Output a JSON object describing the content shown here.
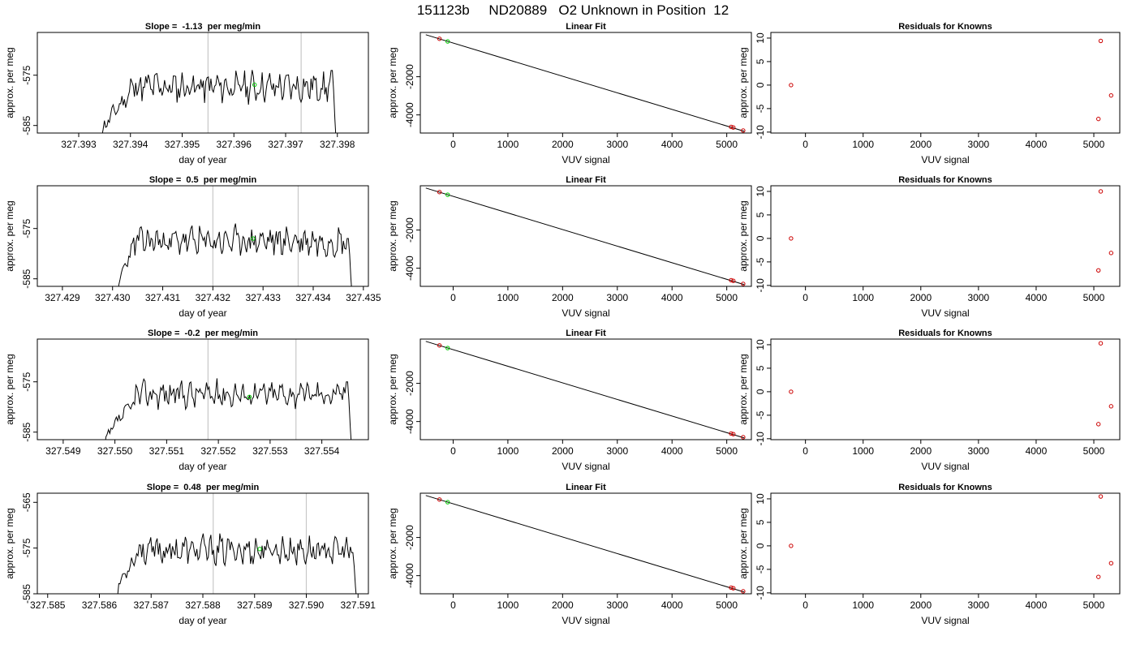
{
  "page_title": "151123b     ND20889   O2 Unknown in Position  12",
  "colors": {
    "trace": "#000000",
    "known_point": "#cc0000",
    "unknown_point": "#00cc00",
    "vline": "#c8c8c8"
  },
  "panel_titles": {
    "fit": "Linear Fit",
    "residuals": "Residuals for Knowns"
  },
  "axis_labels": {
    "time_x": "day of year",
    "y": "approx. per meg",
    "vuv_x": "VUV signal"
  },
  "chart_data": [
    {
      "type": "line",
      "row": 1,
      "title": "Slope =  -1.13  per meg/min",
      "xlabel": "day of year",
      "ylabel": "approx. per meg",
      "xlim": [
        327.3922,
        327.3986
      ],
      "ylim": [
        -586.5,
        -566.5
      ],
      "xticks": [
        327.393,
        327.394,
        327.395,
        327.396,
        327.397,
        327.398
      ],
      "yticks": [
        -575,
        -585
      ],
      "vlines": [
        327.3955,
        327.3973
      ],
      "trace": {
        "start": 327.3934,
        "ramp_end": 327.394,
        "end": 327.398,
        "level": -577.3,
        "amp": 2.3,
        "seed": 11
      },
      "unknown_point": {
        "x": 327.3964,
        "y": -576.9
      },
      "grid": false
    },
    {
      "type": "scatter",
      "row": 1,
      "title": "Linear Fit",
      "xlabel": "VUV signal",
      "ylabel": "approx. per meg",
      "xlim": [
        -600,
        5450
      ],
      "ylim": [
        -4950,
        320
      ],
      "xticks": [
        0,
        1000,
        2000,
        3000,
        4000,
        5000
      ],
      "yticks": [
        -2000,
        -4000
      ],
      "fit_line": [
        [
          -500,
          200
        ],
        [
          5320,
          -4860
        ]
      ],
      "known_points": [
        [
          -250,
          -10
        ],
        [
          5080,
          -4630
        ],
        [
          5120,
          -4660
        ],
        [
          5300,
          -4820
        ]
      ],
      "unknown_points": [
        [
          -100,
          -150
        ]
      ]
    },
    {
      "type": "scatter",
      "row": 1,
      "title": "Residuals for Knowns",
      "xlabel": "VUV signal",
      "ylabel": "approx. per meg",
      "xlim": [
        -600,
        5450
      ],
      "ylim": [
        -10.2,
        11.2
      ],
      "xticks": [
        0,
        1000,
        2000,
        3000,
        4000,
        5000
      ],
      "yticks": [
        -10,
        -5,
        0,
        5,
        10
      ],
      "known_points": [
        [
          -250,
          0.0
        ],
        [
          5120,
          9.4
        ],
        [
          5080,
          -7.2
        ],
        [
          5300,
          -2.2
        ]
      ]
    },
    {
      "type": "line",
      "row": 2,
      "title": "Slope =  0.5  per meg/min",
      "xlabel": "day of year",
      "ylabel": "approx. per meg",
      "xlim": [
        327.4285,
        327.4351
      ],
      "ylim": [
        -586.5,
        -566.5
      ],
      "xticks": [
        327.429,
        327.43,
        327.431,
        327.432,
        327.433,
        327.434,
        327.435
      ],
      "yticks": [
        -575,
        -585
      ],
      "vlines": [
        327.432,
        327.4337
      ],
      "trace": {
        "start": 327.4301,
        "ramp_end": 327.4304,
        "end": 327.4348,
        "level": -577.5,
        "amp": 2.2,
        "seed": 23
      },
      "unknown_point": {
        "x": 327.4328,
        "y": -577.0
      },
      "grid": false
    },
    {
      "type": "scatter",
      "row": 2,
      "title": "Linear Fit",
      "xlabel": "VUV signal",
      "ylabel": "approx. per meg",
      "xlim": [
        -600,
        5450
      ],
      "ylim": [
        -4950,
        320
      ],
      "xticks": [
        0,
        1000,
        2000,
        3000,
        4000,
        5000
      ],
      "yticks": [
        -2000,
        -4000
      ],
      "fit_line": [
        [
          -500,
          200
        ],
        [
          5320,
          -4860
        ]
      ],
      "known_points": [
        [
          -250,
          -10
        ],
        [
          5080,
          -4630
        ],
        [
          5120,
          -4660
        ],
        [
          5300,
          -4820
        ]
      ],
      "unknown_points": [
        [
          -100,
          -150
        ]
      ]
    },
    {
      "type": "scatter",
      "row": 2,
      "title": "Residuals for Knowns",
      "xlabel": "VUV signal",
      "ylabel": "approx. per meg",
      "xlim": [
        -600,
        5450
      ],
      "ylim": [
        -10.2,
        11.2
      ],
      "xticks": [
        0,
        1000,
        2000,
        3000,
        4000,
        5000
      ],
      "yticks": [
        -10,
        -5,
        0,
        5,
        10
      ],
      "known_points": [
        [
          -250,
          0.0
        ],
        [
          5120,
          10.0
        ],
        [
          5080,
          -6.8
        ],
        [
          5300,
          -3.1
        ]
      ]
    },
    {
      "type": "line",
      "row": 3,
      "title": "Slope =  -0.2  per meg/min",
      "xlabel": "day of year",
      "ylabel": "approx. per meg",
      "xlim": [
        327.5485,
        327.5549
      ],
      "ylim": [
        -586.5,
        -566.5
      ],
      "xticks": [
        327.549,
        327.55,
        327.551,
        327.552,
        327.553,
        327.554
      ],
      "yticks": [
        -575,
        -585
      ],
      "vlines": [
        327.5518,
        327.5535
      ],
      "trace": {
        "start": 327.5498,
        "ramp_end": 327.5504,
        "end": 327.5546,
        "level": -577.4,
        "amp": 2.0,
        "seed": 37
      },
      "unknown_point": {
        "x": 327.5526,
        "y": -578.0
      },
      "grid": false
    },
    {
      "type": "scatter",
      "row": 3,
      "title": "Linear Fit",
      "xlabel": "VUV signal",
      "ylabel": "approx. per meg",
      "xlim": [
        -600,
        5450
      ],
      "ylim": [
        -4950,
        320
      ],
      "xticks": [
        0,
        1000,
        2000,
        3000,
        4000,
        5000
      ],
      "yticks": [
        -2000,
        -4000
      ],
      "fit_line": [
        [
          -500,
          200
        ],
        [
          5320,
          -4860
        ]
      ],
      "known_points": [
        [
          -250,
          -10
        ],
        [
          5080,
          -4630
        ],
        [
          5120,
          -4660
        ],
        [
          5300,
          -4820
        ]
      ],
      "unknown_points": [
        [
          -100,
          -150
        ]
      ]
    },
    {
      "type": "scatter",
      "row": 3,
      "title": "Residuals for Knowns",
      "xlabel": "VUV signal",
      "ylabel": "approx. per meg",
      "xlim": [
        -600,
        5450
      ],
      "ylim": [
        -10.2,
        11.2
      ],
      "xticks": [
        0,
        1000,
        2000,
        3000,
        4000,
        5000
      ],
      "yticks": [
        -10,
        -5,
        0,
        5,
        10
      ],
      "known_points": [
        [
          -250,
          0.0
        ],
        [
          5120,
          10.3
        ],
        [
          5080,
          -6.9
        ],
        [
          5300,
          -3.1
        ]
      ]
    },
    {
      "type": "line",
      "row": 4,
      "title": "Slope =  0.48  per meg/min",
      "xlabel": "day of year",
      "ylabel": "approx. per meg",
      "xlim": [
        327.5848,
        327.5912
      ],
      "ylim": [
        -585,
        -563
      ],
      "xticks": [
        327.585,
        327.586,
        327.587,
        327.588,
        327.589,
        327.59,
        327.591
      ],
      "yticks": [
        -565,
        -575,
        -585
      ],
      "vlines": [
        327.5882,
        327.59
      ],
      "trace": {
        "start": 327.5863,
        "ramp_end": 327.5867,
        "end": 327.591,
        "level": -575.5,
        "amp": 2.4,
        "seed": 53
      },
      "unknown_point": {
        "x": 327.5891,
        "y": -575.2
      },
      "grid": false
    },
    {
      "type": "scatter",
      "row": 4,
      "title": "Linear Fit",
      "xlabel": "VUV signal",
      "ylabel": "approx. per meg",
      "xlim": [
        -600,
        5450
      ],
      "ylim": [
        -4950,
        320
      ],
      "xticks": [
        0,
        1000,
        2000,
        3000,
        4000,
        5000
      ],
      "yticks": [
        -2000,
        -4000
      ],
      "fit_line": [
        [
          -500,
          200
        ],
        [
          5320,
          -4860
        ]
      ],
      "known_points": [
        [
          -250,
          -10
        ],
        [
          5080,
          -4630
        ],
        [
          5120,
          -4660
        ],
        [
          5300,
          -4820
        ]
      ],
      "unknown_points": [
        [
          -100,
          -150
        ]
      ]
    },
    {
      "type": "scatter",
      "row": 4,
      "title": "Residuals for Knowns",
      "xlabel": "VUV signal",
      "ylabel": "approx. per meg",
      "xlim": [
        -600,
        5450
      ],
      "ylim": [
        -10.2,
        11.2
      ],
      "xticks": [
        0,
        1000,
        2000,
        3000,
        4000,
        5000
      ],
      "yticks": [
        -10,
        -5,
        0,
        5,
        10
      ],
      "known_points": [
        [
          -250,
          0.0
        ],
        [
          5120,
          10.5
        ],
        [
          5080,
          -6.6
        ],
        [
          5300,
          -3.7
        ]
      ]
    }
  ]
}
